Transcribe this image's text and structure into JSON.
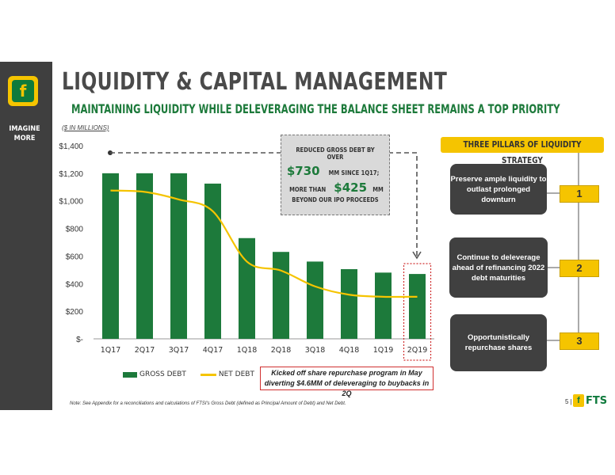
{
  "header": {
    "title": "LIQUIDITY & CAPITAL MANAGEMENT",
    "subtitle": "MAINTAINING LIQUIDITY WHILE DELEVERAGING THE BALANCE SHEET REMAINS A TOP PRIORITY",
    "tagline_line1": "IMAGINE",
    "tagline_line2": "MORE"
  },
  "callout": {
    "line1": "REDUCED GROSS DEBT BY OVER",
    "amount1": "$730",
    "amount1_suffix": "MM SINCE 1Q17;",
    "line3_prefix": "MORE THAN",
    "amount2": "$425",
    "amount2_suffix": "MM",
    "line4": "BEYOND OUR IPO PROCEEDS"
  },
  "note_box": {
    "line1": "Kicked off share repurchase program in May",
    "line2": "diverting $4.6MM of deleveraging to buybacks in 2Q"
  },
  "pillars": {
    "header": "THREE PILLARS OF LIQUIDITY STRATEGY",
    "items": [
      {
        "text": "Preserve ample liquidity to outlast prolonged downturn",
        "number": "1"
      },
      {
        "text": "Continue to deleverage ahead of refinancing 2022 debt maturities",
        "number": "2"
      },
      {
        "text": "Opportunistically repurchase shares",
        "number": "3"
      }
    ]
  },
  "footer": {
    "footnote": "Note: See Appendix for a reconciliations and calculations of FTSI's Gross Debt (defined as Principal Amount of Debt) and Net Debt.",
    "page": "5 |",
    "logo_text": "FTS"
  },
  "colors": {
    "bar": "#1d7a3b",
    "line": "#f5c400",
    "accent_green": "#1d7a3b",
    "accent_yellow": "#f5c400"
  },
  "chart_data": {
    "type": "bar",
    "unit_label": "($ IN MILLIONS)",
    "categories": [
      "1Q17",
      "2Q17",
      "3Q17",
      "4Q17",
      "1Q18",
      "2Q18",
      "3Q18",
      "4Q18",
      "1Q19",
      "2Q19"
    ],
    "series": [
      {
        "name": "GROSS DEBT",
        "type": "bar",
        "values": [
          1200,
          1200,
          1200,
          1125,
          730,
          630,
          560,
          505,
          480,
          470
        ]
      },
      {
        "name": "NET DEBT",
        "type": "line",
        "values": [
          1075,
          1065,
          1010,
          925,
          560,
          495,
          380,
          320,
          305,
          305
        ]
      }
    ],
    "y_ticks": [
      {
        "v": 0,
        "label": "$-"
      },
      {
        "v": 200,
        "label": "$200"
      },
      {
        "v": 400,
        "label": "$400"
      },
      {
        "v": 600,
        "label": "$600"
      },
      {
        "v": 800,
        "label": "$800"
      },
      {
        "v": 1000,
        "label": "$1,000"
      },
      {
        "v": 1200,
        "label": "$1,200"
      },
      {
        "v": 1400,
        "label": "$1,400"
      }
    ],
    "ylim": [
      0,
      1400
    ],
    "legend_position": "bottom",
    "grid": false
  }
}
